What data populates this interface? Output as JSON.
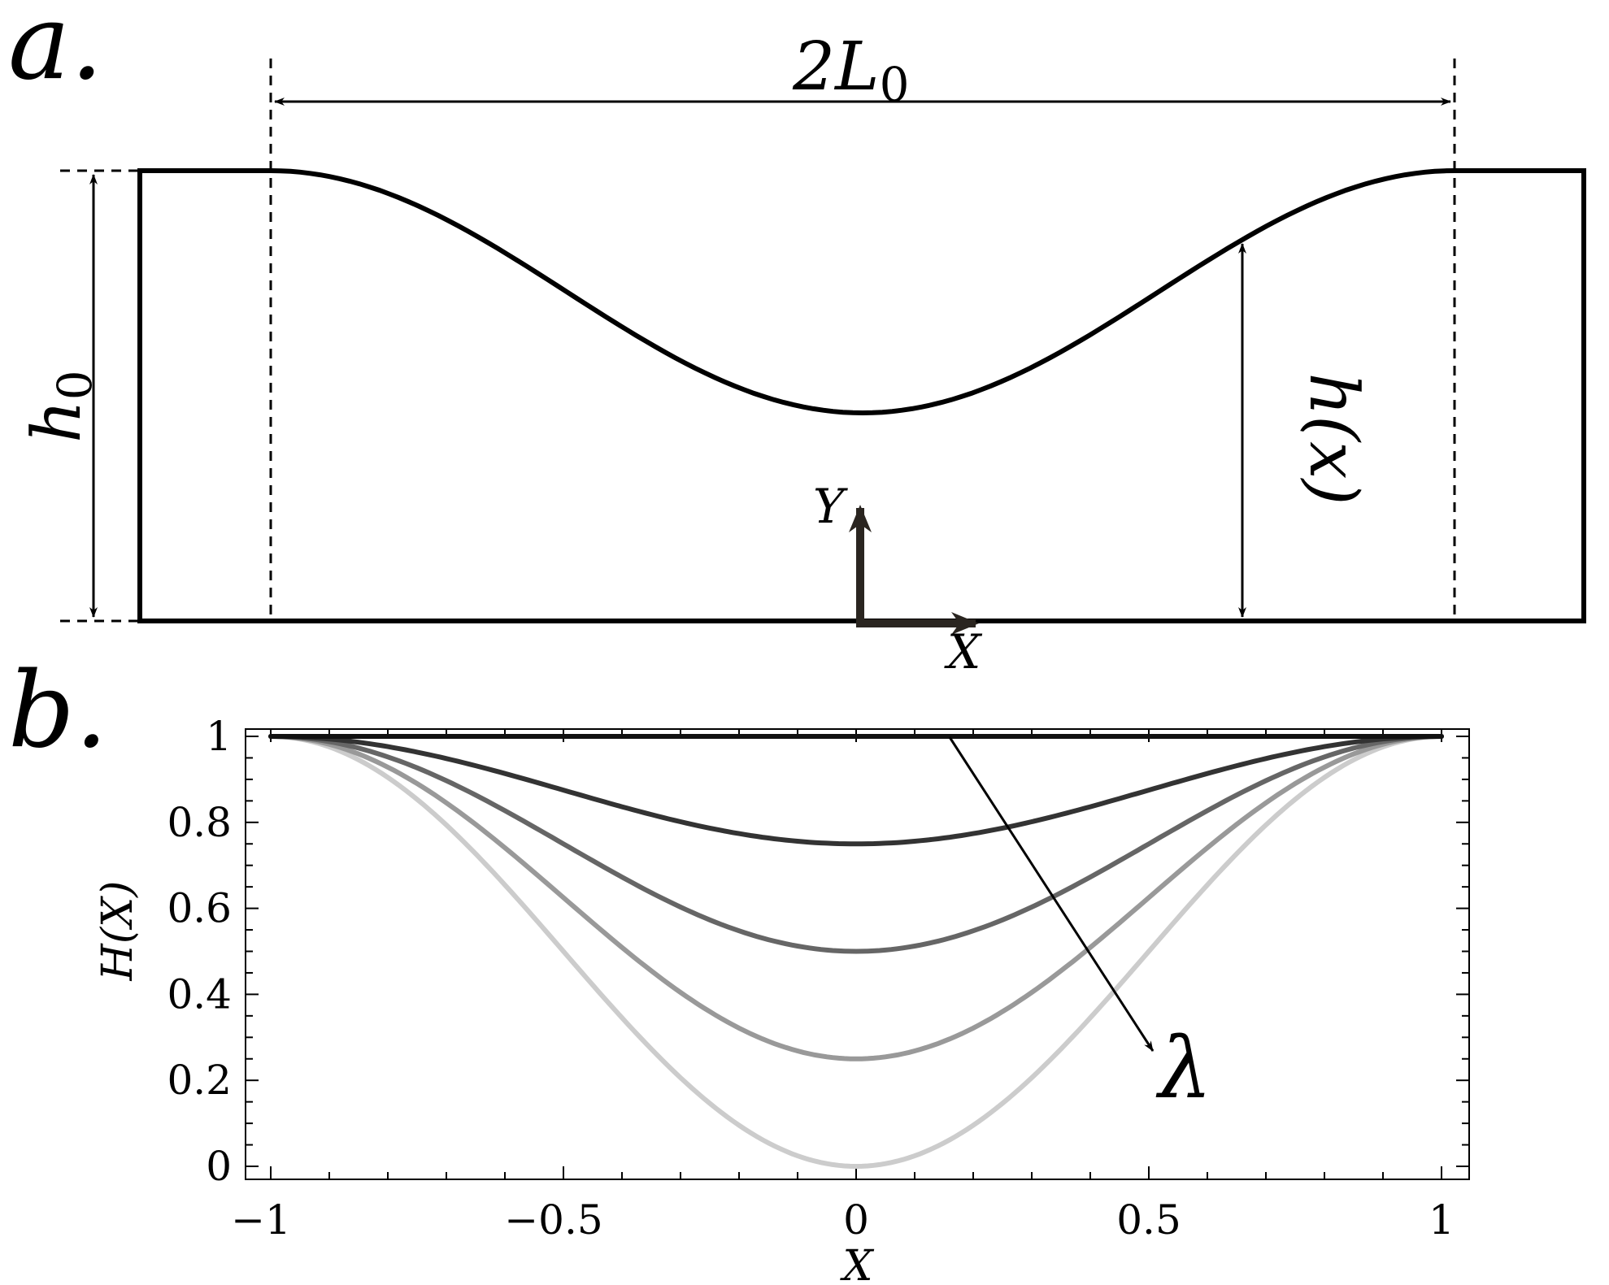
{
  "panel_a": {
    "letter": "a.",
    "width_label": "2L",
    "width_label_sub": "0",
    "height_label": "h",
    "height_label_sub": "0",
    "profile_label": "h(x)",
    "axis_y_label": "Y",
    "axis_x_label": "X"
  },
  "panel_b": {
    "letter": "b.",
    "arrow_label": "λ"
  },
  "chart_data": {
    "type": "line",
    "xlabel": "X",
    "ylabel": "H(X)",
    "xlim": [
      -1,
      1
    ],
    "ylim": [
      0,
      1
    ],
    "x_ticks": [
      -1,
      -0.5,
      0,
      0.5,
      1
    ],
    "x_tick_labels": [
      "−1",
      "−0.5",
      "0",
      "0.5",
      "1"
    ],
    "y_ticks": [
      0,
      0.2,
      0.4,
      0.6,
      0.8,
      1
    ],
    "y_tick_labels": [
      "0",
      "0.2",
      "0.4",
      "0.6",
      "0.8",
      "1"
    ],
    "grid": false,
    "series": [
      {
        "min_value": 1.0,
        "color": "#111111"
      },
      {
        "min_value": 0.75,
        "color": "#333333"
      },
      {
        "min_value": 0.5,
        "color": "#666666"
      },
      {
        "min_value": 0.25,
        "color": "#999999"
      },
      {
        "min_value": 0.0,
        "color": "#cccccc"
      }
    ]
  }
}
